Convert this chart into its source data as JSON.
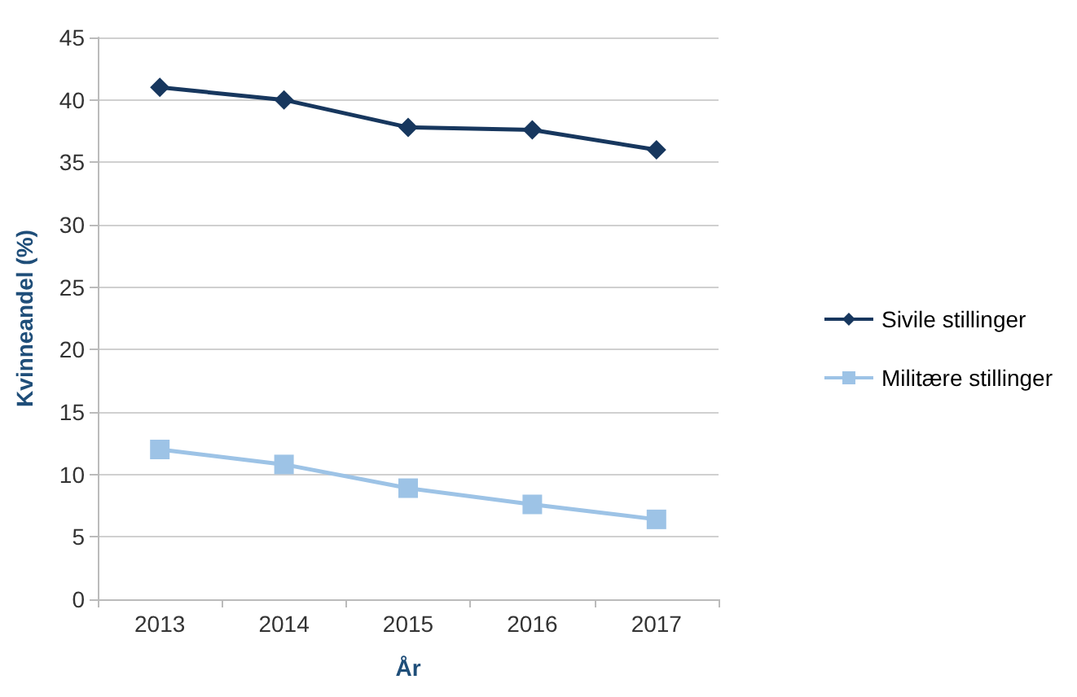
{
  "chart_data": {
    "type": "line",
    "xlabel": "År",
    "ylabel": "Kvinneandel (%)",
    "categories": [
      "2013",
      "2014",
      "2015",
      "2016",
      "2017"
    ],
    "series": [
      {
        "name": "Sivile stillinger",
        "color": "#17375e",
        "marker": "diamond",
        "values": [
          41,
          40,
          37.8,
          37.6,
          36
        ]
      },
      {
        "name": "Militære stillinger",
        "color": "#9dc3e6",
        "marker": "square",
        "values": [
          12,
          10.8,
          8.9,
          7.6,
          6.4
        ]
      }
    ],
    "ylim": [
      0,
      45
    ],
    "yticks": [
      0,
      5,
      10,
      15,
      20,
      25,
      30,
      35,
      40,
      45
    ],
    "grid": "y",
    "legend": "right"
  }
}
